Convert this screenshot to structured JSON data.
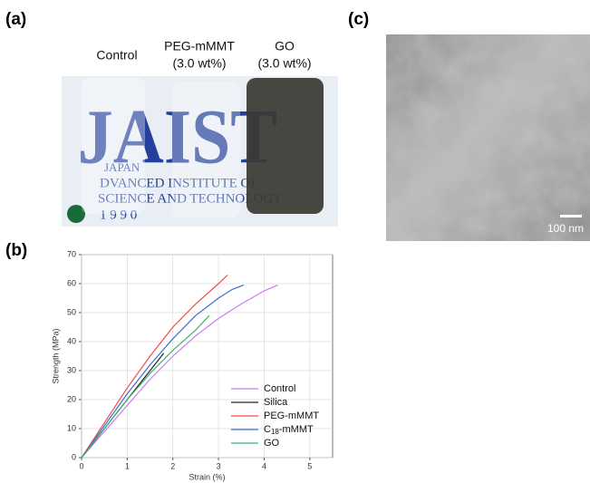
{
  "panel_labels": {
    "a": "(a)",
    "b": "(b)",
    "c": "(c)"
  },
  "photo": {
    "labels": [
      "Control",
      "PEG-mMMT",
      "(3.0 wt%)",
      "GO",
      "(3.0 wt%)"
    ],
    "logo": "JAIST",
    "logo_lines": [
      "JAPAN",
      "DVANCED  INSTITUTE  OF",
      "SCIENCE AND TECHNOLOGY",
      "1 9 9 0"
    ]
  },
  "tem": {
    "scale_bar": "100 nm"
  },
  "chart_data": {
    "type": "line",
    "x_label": "Strain (%)",
    "y_label": "Strength (MPa)",
    "xlim": [
      0,
      5.5
    ],
    "xticks": [
      0,
      1,
      2,
      3,
      4,
      5
    ],
    "ylim": [
      0,
      70
    ],
    "yticks": [
      0,
      10,
      20,
      30,
      40,
      50,
      60,
      70
    ],
    "grid": true,
    "legend": "lower right",
    "series": [
      {
        "name": "Control",
        "color": "#c77cf2",
        "x": [
          0,
          0.5,
          1,
          1.5,
          2,
          2.5,
          3,
          3.5,
          4,
          4.3
        ],
        "values": [
          0,
          9,
          18,
          27,
          35,
          42,
          48,
          53,
          57.5,
          59.5
        ]
      },
      {
        "name": "Silica",
        "color": "#222222",
        "x": [
          0,
          0.5,
          1,
          1.5,
          1.8
        ],
        "values": [
          0,
          10,
          20,
          30,
          36
        ]
      },
      {
        "name": "PEG-mMMT",
        "color": "#ef4b4b",
        "x": [
          0,
          0.5,
          1,
          1.5,
          2,
          2.5,
          3,
          3.2
        ],
        "values": [
          0,
          12,
          24,
          35,
          45,
          53,
          60,
          63
        ]
      },
      {
        "name": "C18-mMMT",
        "color": "#3b6fd1",
        "x": [
          0,
          0.5,
          1,
          1.5,
          2,
          2.5,
          3,
          3.3,
          3.55
        ],
        "values": [
          0,
          11,
          22,
          32,
          41,
          49,
          55,
          58,
          59.5
        ]
      },
      {
        "name": "GO",
        "color": "#3cb371",
        "x": [
          0,
          0.5,
          1,
          1.5,
          2,
          2.5,
          2.8
        ],
        "values": [
          0,
          10,
          20,
          29,
          37,
          44,
          49
        ]
      }
    ]
  }
}
